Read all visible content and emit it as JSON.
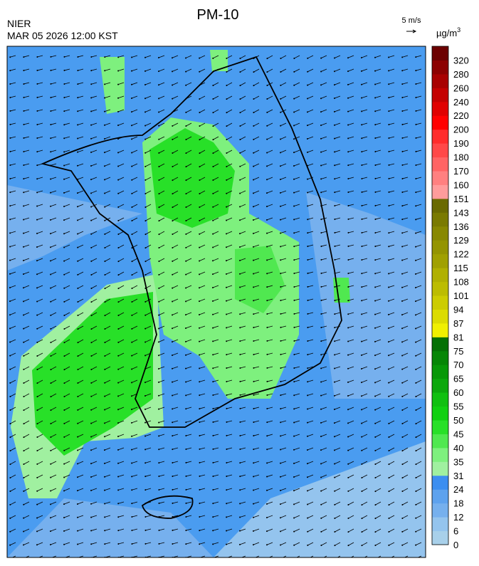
{
  "header": {
    "title": "PM-10",
    "agency": "NIER",
    "timestamp": "MAR 05 2026 12:00 KST",
    "wind_scale": "5 m/s"
  },
  "colorbar": {
    "unit": "µg/m",
    "unit_power": "3",
    "levels": [
      {
        "label": "0",
        "color": "#a8d0ea"
      },
      {
        "label": "6",
        "color": "#94c4ee"
      },
      {
        "label": "12",
        "color": "#76b0ee"
      },
      {
        "label": "18",
        "color": "#5ea2ee"
      },
      {
        "label": "24",
        "color": "#3c8ef0"
      },
      {
        "label": "31",
        "color": "#a0f0a0"
      },
      {
        "label": "35",
        "color": "#7ef07e"
      },
      {
        "label": "40",
        "color": "#50e850"
      },
      {
        "label": "45",
        "color": "#28e028"
      },
      {
        "label": "50",
        "color": "#10d010"
      },
      {
        "label": "55",
        "color": "#10c010"
      },
      {
        "label": "60",
        "color": "#0ca80c"
      },
      {
        "label": "65",
        "color": "#089808"
      },
      {
        "label": "70",
        "color": "#068606"
      },
      {
        "label": "75",
        "color": "#047004"
      },
      {
        "label": "81",
        "color": "#f0f000"
      },
      {
        "label": "87",
        "color": "#dcdc00"
      },
      {
        "label": "94",
        "color": "#cccc00"
      },
      {
        "label": "101",
        "color": "#bcbc00"
      },
      {
        "label": "108",
        "color": "#b0b000"
      },
      {
        "label": "115",
        "color": "#a0a000"
      },
      {
        "label": "122",
        "color": "#949400"
      },
      {
        "label": "129",
        "color": "#888800"
      },
      {
        "label": "136",
        "color": "#7a7a00"
      },
      {
        "label": "143",
        "color": "#6a6a00"
      },
      {
        "label": "151",
        "color": "#ff9c9c"
      },
      {
        "label": "160",
        "color": "#ff8080"
      },
      {
        "label": "170",
        "color": "#ff6464"
      },
      {
        "label": "180",
        "color": "#ff4848"
      },
      {
        "label": "190",
        "color": "#ff2c2c"
      },
      {
        "label": "200",
        "color": "#ff0000"
      },
      {
        "label": "220",
        "color": "#e00000"
      },
      {
        "label": "240",
        "color": "#c40000"
      },
      {
        "label": "260",
        "color": "#a80000"
      },
      {
        "label": "280",
        "color": "#8c0000"
      },
      {
        "label": "320",
        "color": "#6c0000"
      }
    ]
  }
}
